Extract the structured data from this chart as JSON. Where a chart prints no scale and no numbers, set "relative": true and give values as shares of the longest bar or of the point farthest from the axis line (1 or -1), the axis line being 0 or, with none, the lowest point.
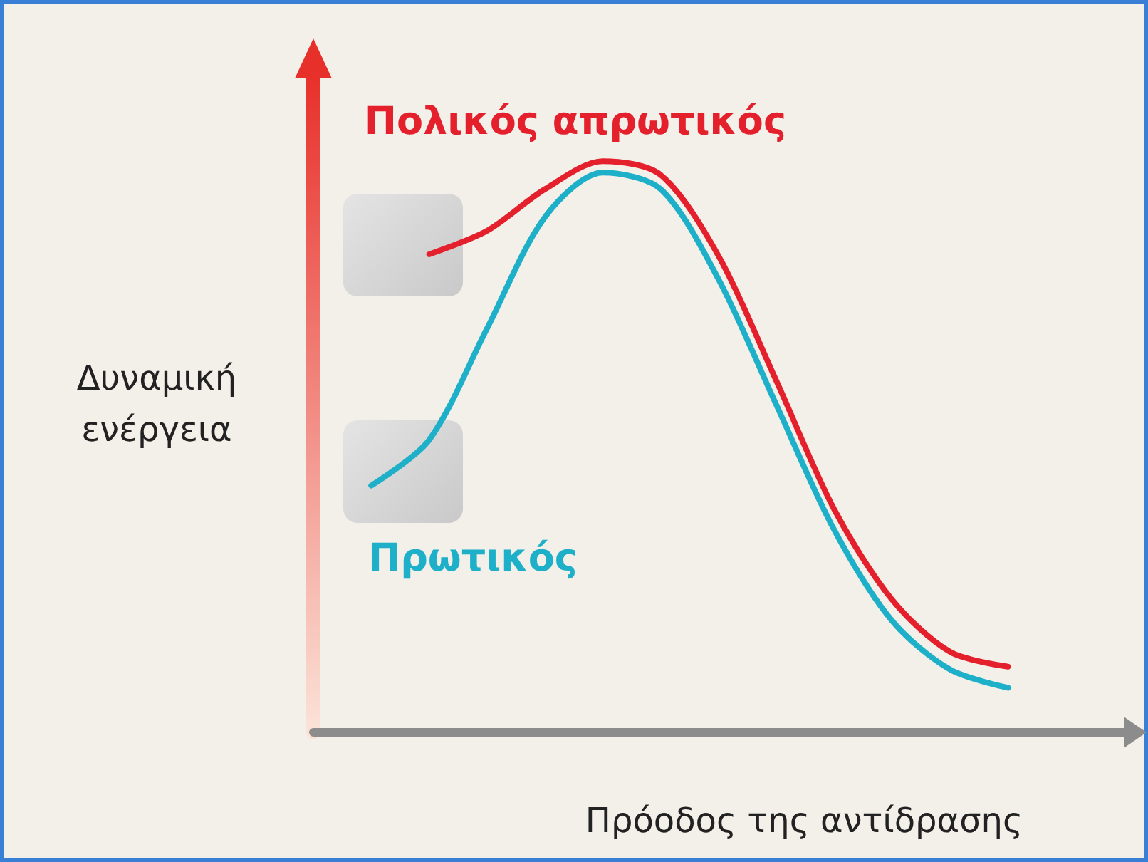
{
  "chart_data": {
    "type": "line",
    "relative": true,
    "xlabel": "Πρόοδος της αντίδρασης",
    "ylabel": "Δυναμική\nενέργεια",
    "categories": [
      null,
      null,
      null,
      null,
      null,
      null,
      null,
      null,
      null,
      null,
      null,
      null,
      null,
      null,
      null
    ],
    "legend": false,
    "grid": false,
    "marker": "none",
    "line_style": "solid",
    "series": [
      {
        "name": "Πολικός απρωτικός",
        "color": "#e3202c",
        "values": [
          null,
          null,
          0.837,
          0.878,
          0.951,
          1.0,
          0.976,
          0.834,
          0.615,
          0.39,
          0.232,
          0.141,
          0.115,
          null,
          null
        ]
      },
      {
        "name": "Πρωτικός",
        "color": "#1eb0c8",
        "values": [
          null,
          0.432,
          0.512,
          0.707,
          0.902,
          0.98,
          0.951,
          0.793,
          0.573,
          0.354,
          0.195,
          0.11,
          0.078,
          null,
          null
        ]
      }
    ]
  }
}
